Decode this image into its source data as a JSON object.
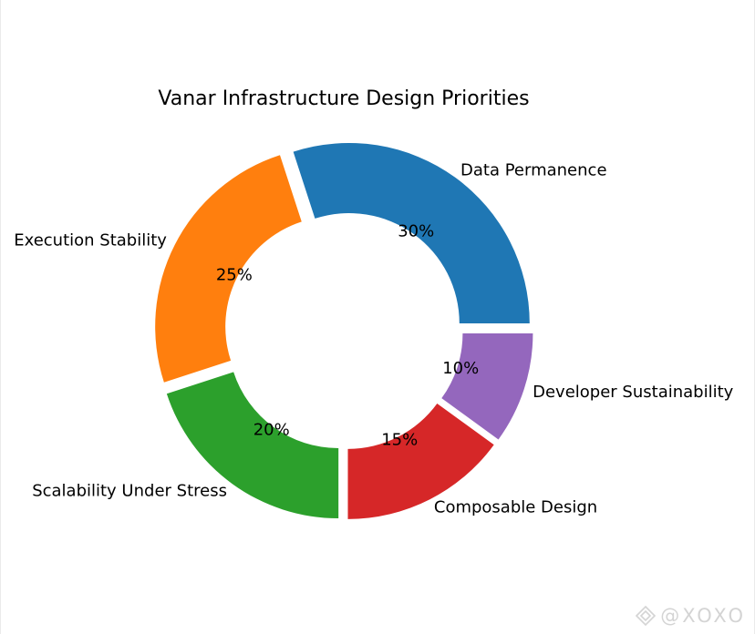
{
  "chart_data": {
    "type": "pie",
    "variant": "donut",
    "title": "Vanar Infrastructure Design Priorities",
    "slices": [
      {
        "label": "Data Permanence",
        "value": 30,
        "pct_label": "30%",
        "color": "#1f77b4"
      },
      {
        "label": "Execution Stability",
        "value": 25,
        "pct_label": "25%",
        "color": "#ff7f0e"
      },
      {
        "label": "Scalability Under Stress",
        "value": 20,
        "pct_label": "20%",
        "color": "#2ca02c"
      },
      {
        "label": "Composable Design",
        "value": 15,
        "pct_label": "15%",
        "color": "#d62728"
      },
      {
        "label": "Developer Sustainability",
        "value": 10,
        "pct_label": "10%",
        "color": "#9467bd"
      }
    ],
    "start_angle_deg": 0,
    "direction": "counterclockwise",
    "exploded": true,
    "legend": "none"
  },
  "watermark": {
    "text": "@XOXO",
    "icon": "diamond-logo-icon"
  }
}
